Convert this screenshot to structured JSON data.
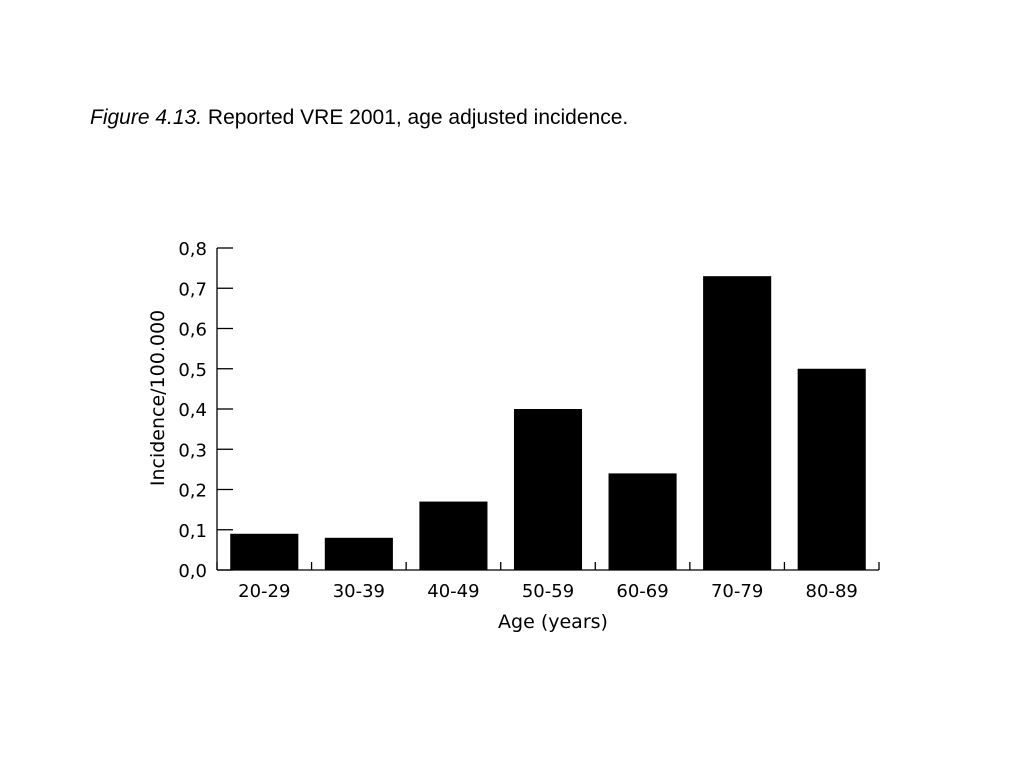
{
  "caption": {
    "figure_label": "Figure 4.13.",
    "text": "Reported VRE 2001, age adjusted incidence."
  },
  "chart_data": {
    "type": "bar",
    "categories": [
      "20-29",
      "30-39",
      "40-49",
      "50-59",
      "60-69",
      "70-79",
      "80-89"
    ],
    "values": [
      0.09,
      0.08,
      0.17,
      0.4,
      0.24,
      0.73,
      0.5
    ],
    "xlabel": "Age (years)",
    "ylabel": "Incidence/100.000",
    "ylim": [
      0,
      0.8
    ],
    "yticks": [
      "0,0",
      "0,1",
      "0,2",
      "0,3",
      "0,4",
      "0,5",
      "0,6",
      "0,7",
      "0,8"
    ],
    "bar_color": "#000000",
    "grid": false,
    "legend": "none"
  }
}
